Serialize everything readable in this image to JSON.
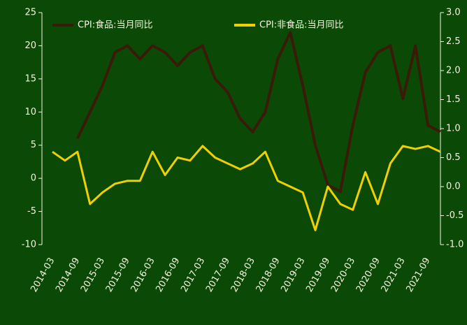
{
  "chart_data": {
    "type": "line",
    "categories": [
      "2014-03",
      null,
      "2014-09",
      null,
      "2015-03",
      null,
      "2015-09",
      null,
      "2016-03",
      null,
      "2016-09",
      null,
      "2017-03",
      null,
      "2017-09",
      null,
      "2018-03",
      null,
      "2018-09",
      null,
      "2019-03",
      null,
      "2019-09",
      null,
      "2020-03",
      null,
      "2020-09",
      null,
      "2021-03",
      null,
      "2021-09",
      null
    ],
    "series": [
      {
        "name": "CPI:食品:当月同比",
        "color": "#3a1a08",
        "axis": "y",
        "values": [
          null,
          null,
          6,
          10,
          14,
          19,
          20,
          18,
          20,
          19,
          17,
          19,
          20,
          15,
          13,
          9,
          7,
          10,
          18,
          22,
          14,
          5,
          -1,
          -2,
          8,
          16,
          19,
          20,
          12,
          20,
          8,
          7
        ]
      },
      {
        "name": "CPI:非食品:当月同比",
        "color": "#f0d000",
        "axis": "y2",
        "values": [
          0.6,
          0.45,
          0.6,
          -0.3,
          -0.1,
          0.05,
          0.1,
          0.1,
          0.6,
          0.2,
          0.5,
          0.45,
          0.7,
          0.5,
          0.4,
          0.3,
          0.4,
          0.6,
          0.1,
          0.0,
          -0.1,
          -0.75,
          0.0,
          -0.3,
          -0.4,
          0.25,
          -0.3,
          0.4,
          0.7,
          0.65,
          0.7,
          0.6
        ]
      }
    ],
    "ylim": [
      -10,
      25
    ],
    "yticks": [
      -10,
      -5,
      0,
      5,
      10,
      15,
      20,
      25
    ],
    "y2lim": [
      -1,
      3
    ],
    "y2ticks": [
      {
        "value": -1,
        "label": "-1.0"
      },
      {
        "value": -0.5,
        "label": "-0.5"
      },
      {
        "value": 0,
        "label": "0.0"
      },
      {
        "value": 0.5,
        "label": "0.5"
      },
      {
        "value": 1,
        "label": "1.0"
      },
      {
        "value": 1.5,
        "label": "1.5"
      },
      {
        "value": 2,
        "label": "2.0"
      },
      {
        "value": 2.5,
        "label": "2.5"
      },
      {
        "value": 3,
        "label": "3.0"
      }
    ],
    "legend": "top",
    "grid": false
  }
}
